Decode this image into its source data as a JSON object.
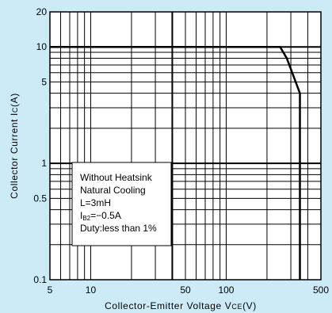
{
  "chart_data": {
    "type": "line",
    "title": "",
    "xlabel": "Collector-Emitter Voltage VCE(V)",
    "xlabel_parts": {
      "main": "Collector-Emitter Voltage V",
      "sub": "CE",
      "unit": "(V)"
    },
    "ylabel": "Collector Current Ic(A)",
    "ylabel_parts": {
      "main": "Collector Current I",
      "sub": "C",
      "unit": "(A)"
    },
    "x_scale": "log",
    "y_scale": "log",
    "xlim": [
      5,
      500
    ],
    "ylim": [
      0.1,
      20
    ],
    "x_ticks": [
      {
        "value": 5,
        "label": "5"
      },
      {
        "value": 10,
        "label": "10"
      },
      {
        "value": 50,
        "label": "50"
      },
      {
        "value": 100,
        "label": "100"
      },
      {
        "value": 500,
        "label": "500"
      }
    ],
    "y_ticks": [
      {
        "value": 0.1,
        "label": "0.1"
      },
      {
        "value": 0.5,
        "label": "0.5"
      },
      {
        "value": 1,
        "label": "1"
      },
      {
        "value": 5,
        "label": "5"
      },
      {
        "value": 10,
        "label": "10"
      },
      {
        "value": 20,
        "label": "20"
      }
    ],
    "grid": true,
    "x_grid": [
      6,
      7,
      8,
      9,
      10,
      20,
      30,
      40,
      50,
      60,
      70,
      80,
      90,
      100,
      200,
      300,
      400
    ],
    "y_grid": [
      0.2,
      0.3,
      0.4,
      0.5,
      0.6,
      0.7,
      0.8,
      0.9,
      1,
      2,
      3,
      4,
      5,
      6,
      7,
      8,
      9,
      10
    ],
    "x_grid_bold": [
      40
    ],
    "y_grid_bold": [
      1,
      10
    ],
    "series": [
      {
        "points": [
          {
            "x": 5,
            "y": 10
          },
          {
            "x": 250,
            "y": 10
          },
          {
            "x": 280,
            "y": 8
          },
          {
            "x": 350,
            "y": 4
          },
          {
            "x": 350,
            "y": 0.1
          }
        ]
      }
    ],
    "annotation": {
      "placement": "center-left",
      "lines": [
        {
          "text": "Without Heatsink"
        },
        {
          "text": "Natural Cooling"
        },
        {
          "text": "L=3mH"
        },
        {
          "main": "I",
          "sub": "B2",
          "rest": "=−0.5A"
        },
        {
          "text": "Duty:less than 1%"
        }
      ]
    }
  }
}
